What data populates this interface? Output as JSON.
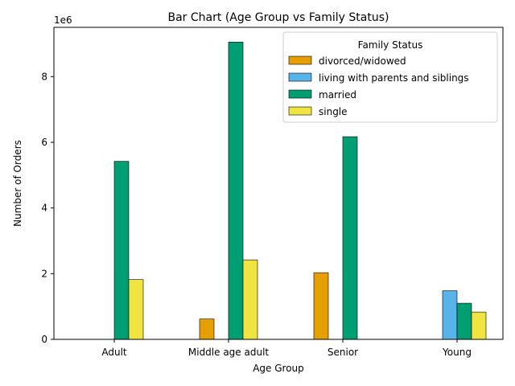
{
  "chart_data": {
    "type": "bar",
    "title": "Bar Chart (Age Group vs Family Status)",
    "xlabel": "Age Group",
    "ylabel": "Number of Orders",
    "scale_label": "1e6",
    "categories": [
      "Adult",
      "Middle age adult",
      "Senior",
      "Young"
    ],
    "ylim": [
      0,
      9500000
    ],
    "yticks": [
      0,
      2,
      4,
      6,
      8
    ],
    "grid": false,
    "legend": {
      "title": "Family Status",
      "position": "top-right"
    },
    "series": [
      {
        "name": "divorced/widowed",
        "color": "#E69F00",
        "values": [
          0,
          620000,
          2030000,
          0
        ]
      },
      {
        "name": "living with parents and siblings",
        "color": "#56B4E9",
        "values": [
          0,
          0,
          0,
          1480000
        ]
      },
      {
        "name": "married",
        "color": "#009E73",
        "values": [
          5420000,
          9050000,
          6170000,
          1100000
        ]
      },
      {
        "name": "single",
        "color": "#F0E442",
        "values": [
          1820000,
          2420000,
          0,
          830000
        ]
      }
    ]
  }
}
